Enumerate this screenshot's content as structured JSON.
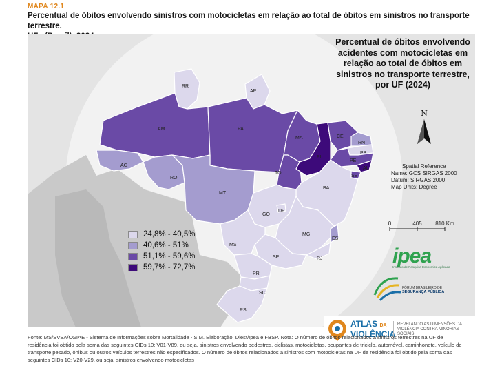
{
  "header": {
    "kicker": "MAPA 12.1",
    "title_line1": "Percentual de óbitos envolvendo sinistros com motocicletas em relação ao total de óbitos em sinistros no transporte terrestre.",
    "title_line2": "UFs (Brasil). 2024"
  },
  "map_title": "Percentual de óbitos envolvendo acidentes com motocicletas em relação ao total de óbitos em sinistros no transporte terrestre, por UF (2024)",
  "north_label": "N",
  "spatial_reference": {
    "heading": "Spatial Reference",
    "name": "Name: GCS SIRGAS 2000",
    "datum": "Datum: SIRGAS 2000",
    "units": "Map Units: Degree"
  },
  "scale_bar": {
    "labels": [
      "0",
      "405",
      "810 Km"
    ]
  },
  "legend": [
    {
      "label": "24,8% - 40,5%",
      "color": "#dcd8ec"
    },
    {
      "label": "40,6% - 51%",
      "color": "#a49ccf"
    },
    {
      "label": "51,1% - 59,6%",
      "color": "#6a4aa6"
    },
    {
      "label": "59,7% - 72,7%",
      "color": "#3d0a7a"
    }
  ],
  "states": [
    {
      "uf": "RR",
      "class": 0
    },
    {
      "uf": "AP",
      "class": 0
    },
    {
      "uf": "AM",
      "class": 2
    },
    {
      "uf": "PA",
      "class": 2
    },
    {
      "uf": "AC",
      "class": 1
    },
    {
      "uf": "RO",
      "class": 1
    },
    {
      "uf": "MT",
      "class": 1
    },
    {
      "uf": "TO",
      "class": 2
    },
    {
      "uf": "MA",
      "class": 2
    },
    {
      "uf": "PI",
      "class": 3
    },
    {
      "uf": "CE",
      "class": 2
    },
    {
      "uf": "RN",
      "class": 1
    },
    {
      "uf": "PB",
      "class": 0
    },
    {
      "uf": "PE",
      "class": 2
    },
    {
      "uf": "AL",
      "class": 3
    },
    {
      "uf": "SE",
      "class": 2
    },
    {
      "uf": "BA",
      "class": 0
    },
    {
      "uf": "GO",
      "class": 0
    },
    {
      "uf": "DF",
      "class": 0
    },
    {
      "uf": "MG",
      "class": 0
    },
    {
      "uf": "ES",
      "class": 1
    },
    {
      "uf": "RJ",
      "class": 0
    },
    {
      "uf": "SP",
      "class": 0
    },
    {
      "uf": "MS",
      "class": 0
    },
    {
      "uf": "PR",
      "class": 0
    },
    {
      "uf": "SC",
      "class": 0
    },
    {
      "uf": "RS",
      "class": 0
    }
  ],
  "logos": {
    "ipea_word": "ipea",
    "ipea_sub": "Instituto de Pesquisa Econômica Aplicada",
    "fbsp_line1": "FÓRUM BRASILEIRO DE",
    "fbsp_line2": "SEGURANÇA PÚBLICA",
    "atlas_line1": "ATLAS",
    "atlas_da": "DA",
    "atlas_line2": "VIOLÊNCIA",
    "atlas_sub": "REVELANDO AS DIMENSÕES DA VIOLÊNCIA CONTRA MINORIAS SOCIAIS"
  },
  "footer": "Fonte: MS/SVSA/CGIAE - Sistema de Informações sobre Mortalidade - SIM. Elaboração: Diest/Ipea e FBSP. Nota: O número de óbitos relacionados a sinistros terrestres na UF de residência foi obtido pela soma das seguintes CIDs 10: V01-V89, ou seja, sinistros envolvendo pedestres, ciclistas, motocicletas, ocupantes de triciclo, automóvel, caminhonete, veículo de transporte pesado, ônibus ou outros veículos terrestres não especificados. O número de óbitos relacionados a sinistros com motocicletas na UF de residência foi obtido pela soma das seguintes CIDs 10: V20-V29, ou seja, sinistros envolvendo motocicletas"
}
